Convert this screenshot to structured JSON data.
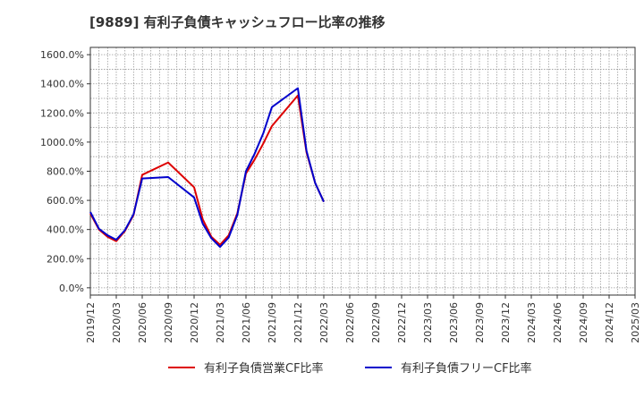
{
  "chart_data": {
    "type": "line",
    "title": "[9889]  有利子負債キャッシュフロー比率の推移",
    "xlabel": "",
    "ylabel": "",
    "ylim": [
      -50,
      1650
    ],
    "y_ticks": [
      "0.0%",
      "200.0%",
      "400.0%",
      "600.0%",
      "800.0%",
      "1000.0%",
      "1200.0%",
      "1400.0%",
      "1600.0%"
    ],
    "y_tick_values": [
      0,
      200,
      400,
      600,
      800,
      1000,
      1200,
      1400,
      1600
    ],
    "x_ticks": [
      "2019/12",
      "2020/03",
      "2020/06",
      "2020/09",
      "2020/12",
      "2021/03",
      "2021/06",
      "2021/09",
      "2021/12",
      "2022/03",
      "2022/06",
      "2022/09",
      "2022/12",
      "2023/03",
      "2023/06",
      "2023/09",
      "2023/12",
      "2024/03",
      "2024/06",
      "2024/09",
      "2024/12",
      "2025/03"
    ],
    "grid": true,
    "legend_position": "bottom",
    "x_months": [
      "2019/12",
      "2020/01",
      "2020/02",
      "2020/03",
      "2020/04",
      "2020/05",
      "2020/06",
      "2020/07",
      "2020/08",
      "2020/09",
      "2020/10",
      "2020/11",
      "2020/12",
      "2021/01",
      "2021/02",
      "2021/03",
      "2021/04",
      "2021/05",
      "2021/06",
      "2021/07",
      "2021/08",
      "2021/09",
      "2021/10",
      "2021/11",
      "2021/12",
      "2022/01",
      "2022/02",
      "2022/03"
    ],
    "series": [
      {
        "name": "有利子負債営業CF比率",
        "color": "#dd0000",
        "values": [
          510,
          400,
          350,
          320,
          390,
          500,
          775,
          null,
          null,
          860,
          null,
          null,
          690,
          470,
          350,
          295,
          360,
          510,
          785,
          880,
          990,
          1110,
          null,
          null,
          1320,
          930,
          720,
          590
        ]
      },
      {
        "name": "有利子負債フリーCF比率",
        "color": "#0000cc",
        "values": [
          520,
          405,
          360,
          330,
          395,
          505,
          750,
          null,
          null,
          760,
          null,
          null,
          620,
          440,
          340,
          280,
          345,
          500,
          800,
          920,
          1060,
          1240,
          null,
          null,
          1370,
          940,
          720,
          590
        ]
      }
    ]
  }
}
